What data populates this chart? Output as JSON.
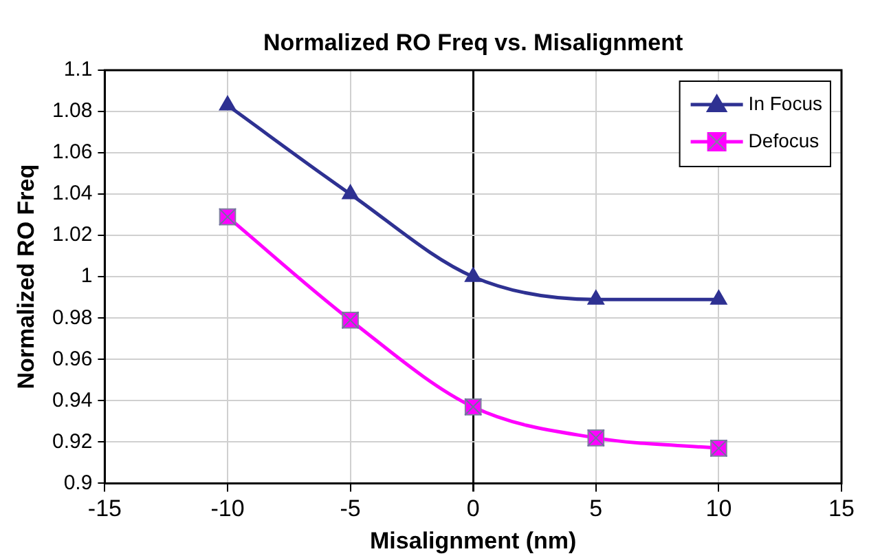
{
  "chart_data": {
    "type": "line",
    "title": "Normalized RO Freq vs. Misalignment",
    "xlabel": "Misalignment (nm)",
    "ylabel": "Normalized RO Freq",
    "x": [
      -10,
      -5,
      0,
      5,
      10
    ],
    "series": [
      {
        "name": "In Focus",
        "color": "#2e3192",
        "marker": "triangle",
        "values": [
          1.083,
          1.04,
          1.0,
          0.989,
          0.989
        ]
      },
      {
        "name": "Defocus",
        "color": "#ff00ff",
        "marker": "square",
        "values": [
          1.029,
          0.979,
          0.937,
          0.922,
          0.917
        ]
      }
    ],
    "xlim": [
      -15,
      15
    ],
    "xticks": [
      -15,
      -10,
      -5,
      0,
      5,
      10,
      15
    ],
    "ylim": [
      0.9,
      1.1
    ],
    "yticks": [
      0.9,
      0.92,
      0.94,
      0.96,
      0.98,
      1,
      1.02,
      1.04,
      1.06,
      1.08,
      1.1
    ],
    "grid": true,
    "legend": "top right",
    "line_style": "solid"
  }
}
